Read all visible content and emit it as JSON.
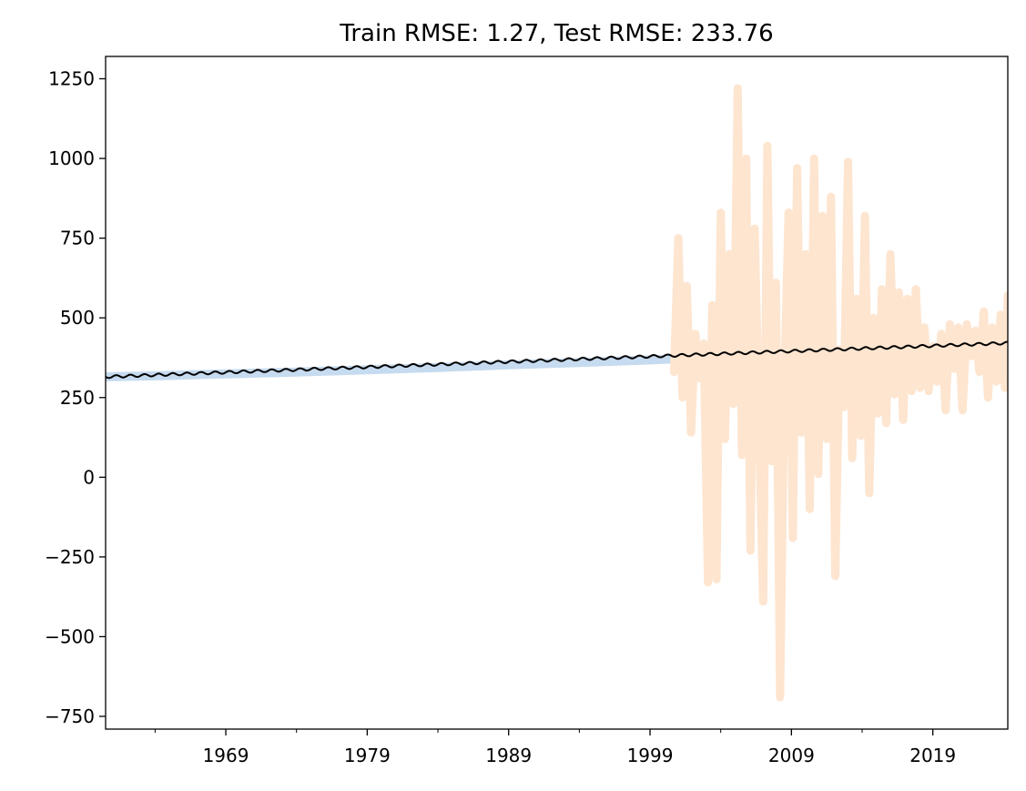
{
  "chart_data": {
    "type": "line",
    "title": "Train RMSE: 1.27, Test RMSE: 233.76",
    "xlabel": "",
    "ylabel": "",
    "xlim": [
      1960.5,
      2024.3
    ],
    "ylim": [
      -790,
      1320
    ],
    "x_ticks": [
      1969,
      1979,
      1989,
      1999,
      2009,
      2019
    ],
    "x_tick_labels": [
      "1969",
      "1979",
      "1989",
      "1999",
      "2009",
      "2019"
    ],
    "x_minor_ticks": [
      1964,
      1974,
      1984,
      1994,
      2004,
      2014
    ],
    "y_ticks": [
      -750,
      -500,
      -250,
      0,
      250,
      500,
      750,
      1000,
      1250
    ],
    "y_tick_labels": [
      "−750",
      "−500",
      "−250",
      "0",
      "250",
      "500",
      "750",
      "1000",
      "1250"
    ],
    "grid": false,
    "legend": "none",
    "colors": {
      "train_band": "#c6dbef",
      "test_series": "#fde5d0",
      "prediction": "#000000",
      "frame": "#000000"
    },
    "series": [
      {
        "role": "train",
        "style": "thick band",
        "x": [
          1960.5,
          1964,
          1969,
          1974,
          1979,
          1984,
          1989,
          1994,
          1999,
          2000.6
        ],
        "values": [
          315,
          318,
          324,
          330,
          337,
          344,
          353,
          360,
          368,
          371
        ]
      },
      {
        "role": "test",
        "style": "thick volatile line",
        "x": [
          2000.7,
          2001.0,
          2001.3,
          2001.6,
          2001.9,
          2002.2,
          2002.5,
          2002.8,
          2003.1,
          2003.4,
          2003.7,
          2004.0,
          2004.3,
          2004.6,
          2004.9,
          2005.2,
          2005.5,
          2005.8,
          2006.1,
          2006.4,
          2006.7,
          2007.0,
          2007.3,
          2007.6,
          2007.9,
          2008.2,
          2008.5,
          2008.8,
          2009.1,
          2009.4,
          2009.7,
          2010.0,
          2010.3,
          2010.6,
          2010.9,
          2011.2,
          2011.5,
          2011.8,
          2012.1,
          2012.4,
          2012.7,
          2013.0,
          2013.3,
          2013.6,
          2013.9,
          2014.2,
          2014.5,
          2014.8,
          2015.1,
          2015.4,
          2015.7,
          2016.0,
          2016.3,
          2016.6,
          2016.9,
          2017.2,
          2017.5,
          2017.8,
          2018.1,
          2018.4,
          2018.7,
          2019.0,
          2019.3,
          2019.6,
          2019.9,
          2020.2,
          2020.5,
          2020.8,
          2021.1,
          2021.4,
          2021.7,
          2022.0,
          2022.3,
          2022.6,
          2022.9,
          2023.2,
          2023.5,
          2023.8,
          2024.1,
          2024.3
        ],
        "values": [
          330,
          750,
          250,
          600,
          140,
          450,
          310,
          420,
          -330,
          540,
          -320,
          830,
          120,
          700,
          230,
          1220,
          70,
          1000,
          -230,
          780,
          180,
          -390,
          1040,
          50,
          610,
          -690,
          300,
          830,
          -190,
          970,
          140,
          700,
          -100,
          1000,
          10,
          820,
          120,
          880,
          -310,
          400,
          220,
          990,
          60,
          560,
          130,
          820,
          -50,
          500,
          200,
          590,
          170,
          700,
          260,
          580,
          180,
          560,
          270,
          590,
          280,
          470,
          270,
          410,
          300,
          450,
          210,
          480,
          340,
          470,
          210,
          480,
          380,
          460,
          330,
          520,
          250,
          470,
          300,
          510,
          280,
          570
        ]
      },
      {
        "role": "prediction",
        "style": "thin seasonal line",
        "x": [
          1960.5,
          2024.3
        ],
        "values": [
          315,
          421
        ],
        "seasonal_amplitude": 4
      }
    ]
  }
}
